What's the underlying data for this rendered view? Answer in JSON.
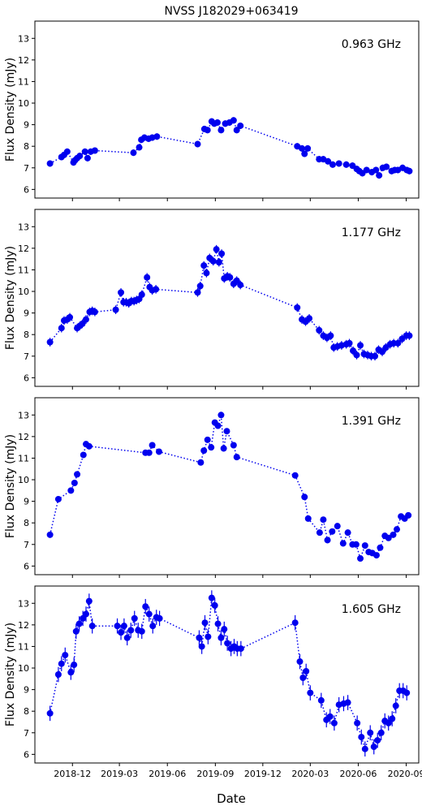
{
  "figure": {
    "title": "NVSS J182029+063419",
    "xlabel": "Date"
  },
  "chart_data": [
    {
      "type": "scatter",
      "panel_label": "0.963 GHz",
      "ylabel": "Flux Density (mJy)",
      "ylim": [
        5.6,
        13.8
      ],
      "yticks": [
        6,
        7,
        8,
        9,
        10,
        11,
        12,
        13
      ],
      "xlim": [
        "2018-09-20",
        "2020-09-25"
      ],
      "xticks": [
        "2018-12",
        "2019-03",
        "2019-06",
        "2019-09",
        "2019-12",
        "2020-03",
        "2020-06",
        "2020-09"
      ],
      "grid": false,
      "marker_style": "circles joined by dotted line, with error bars",
      "x": [
        "2018-10-19",
        "2018-11-10",
        "2018-11-15",
        "2018-11-21",
        "2018-12-03",
        "2018-12-06",
        "2018-12-10",
        "2018-12-15",
        "2018-12-25",
        "2018-12-30",
        "2019-01-05",
        "2019-01-13",
        "2019-03-28",
        "2019-04-08",
        "2019-04-12",
        "2019-04-18",
        "2019-04-26",
        "2019-05-03",
        "2019-05-12",
        "2019-07-29",
        "2019-08-11",
        "2019-08-17",
        "2019-08-25",
        "2019-08-30",
        "2019-09-05",
        "2019-09-12",
        "2019-09-20",
        "2019-09-28",
        "2019-10-06",
        "2019-10-12",
        "2019-10-19",
        "2020-02-05",
        "2020-02-14",
        "2020-02-19",
        "2020-02-25",
        "2020-03-18",
        "2020-03-26",
        "2020-04-04",
        "2020-04-13",
        "2020-04-25",
        "2020-05-09",
        "2020-05-21",
        "2020-05-29",
        "2020-06-03",
        "2020-06-09",
        "2020-06-17",
        "2020-06-27",
        "2020-07-05",
        "2020-07-11",
        "2020-07-18",
        "2020-07-25",
        "2020-08-04",
        "2020-08-10",
        "2020-08-16",
        "2020-08-25",
        "2020-09-02",
        "2020-09-07"
      ],
      "y": [
        7.2,
        7.5,
        7.6,
        7.75,
        7.25,
        7.35,
        7.45,
        7.55,
        7.75,
        7.45,
        7.75,
        7.8,
        7.7,
        7.95,
        8.3,
        8.4,
        8.35,
        8.4,
        8.45,
        8.1,
        8.8,
        8.75,
        9.15,
        9.05,
        9.1,
        8.75,
        9.05,
        9.1,
        9.2,
        8.75,
        8.95,
        8.0,
        7.9,
        7.65,
        7.9,
        7.4,
        7.4,
        7.3,
        7.15,
        7.2,
        7.15,
        7.1,
        6.95,
        6.85,
        6.75,
        6.9,
        6.8,
        6.9,
        6.65,
        7.0,
        7.05,
        6.85,
        6.9,
        6.9,
        7.0,
        6.9,
        6.85
      ],
      "yerr": 0.15
    },
    {
      "type": "scatter",
      "panel_label": "1.177 GHz",
      "ylabel": "Flux Density (mJy)",
      "ylim": [
        5.6,
        13.8
      ],
      "yticks": [
        6,
        7,
        8,
        9,
        10,
        11,
        12,
        13
      ],
      "xlim": [
        "2018-09-20",
        "2020-09-25"
      ],
      "xticks": [
        "2018-12",
        "2019-03",
        "2019-06",
        "2019-09",
        "2019-12",
        "2020-03",
        "2020-06",
        "2020-09"
      ],
      "grid": false,
      "x": [
        "2018-10-19",
        "2018-11-10",
        "2018-11-15",
        "2018-11-21",
        "2018-11-26",
        "2018-12-10",
        "2018-12-15",
        "2018-12-20",
        "2018-12-27",
        "2019-01-03",
        "2019-01-08",
        "2019-01-13",
        "2019-02-22",
        "2019-03-04",
        "2019-03-09",
        "2019-03-14",
        "2019-03-19",
        "2019-03-24",
        "2019-03-29",
        "2019-04-03",
        "2019-04-08",
        "2019-04-13",
        "2019-04-23",
        "2019-04-28",
        "2019-05-03",
        "2019-05-10",
        "2019-07-29",
        "2019-08-03",
        "2019-08-10",
        "2019-08-15",
        "2019-08-21",
        "2019-08-28",
        "2019-09-03",
        "2019-09-08",
        "2019-09-13",
        "2019-09-18",
        "2019-09-24",
        "2019-09-29",
        "2019-10-06",
        "2019-10-12",
        "2019-10-19",
        "2020-02-05",
        "2020-02-14",
        "2020-02-21",
        "2020-02-28",
        "2020-03-18",
        "2020-03-26",
        "2020-04-02",
        "2020-04-09",
        "2020-04-15",
        "2020-04-22",
        "2020-04-30",
        "2020-05-09",
        "2020-05-15",
        "2020-05-22",
        "2020-05-29",
        "2020-06-05",
        "2020-06-12",
        "2020-06-19",
        "2020-06-26",
        "2020-07-03",
        "2020-07-10",
        "2020-07-17",
        "2020-07-24",
        "2020-08-01",
        "2020-08-08",
        "2020-08-16",
        "2020-08-24",
        "2020-09-01",
        "2020-09-07"
      ],
      "y": [
        7.65,
        8.3,
        8.65,
        8.7,
        8.8,
        8.3,
        8.4,
        8.5,
        8.7,
        9.05,
        9.1,
        9.05,
        9.15,
        9.95,
        9.5,
        9.5,
        9.45,
        9.55,
        9.55,
        9.6,
        9.65,
        9.85,
        10.65,
        10.2,
        10.05,
        10.1,
        9.95,
        10.25,
        11.2,
        10.85,
        11.55,
        11.4,
        11.95,
        11.35,
        11.75,
        10.6,
        10.7,
        10.65,
        10.35,
        10.5,
        10.3,
        9.25,
        8.7,
        8.6,
        8.75,
        8.2,
        7.95,
        7.85,
        7.95,
        7.4,
        7.45,
        7.5,
        7.55,
        7.6,
        7.25,
        7.05,
        7.5,
        7.1,
        7.05,
        7.0,
        7.0,
        7.3,
        7.2,
        7.4,
        7.55,
        7.6,
        7.6,
        7.8,
        7.95,
        7.95
      ],
      "yerr": 0.2
    },
    {
      "type": "scatter",
      "panel_label": "1.391 GHz",
      "ylabel": "Flux Density (mJy)",
      "ylim": [
        5.6,
        13.8
      ],
      "yticks": [
        6,
        7,
        8,
        9,
        10,
        11,
        12,
        13
      ],
      "xlim": [
        "2018-09-20",
        "2020-09-25"
      ],
      "xticks": [
        "2018-12",
        "2019-03",
        "2019-06",
        "2019-09",
        "2019-12",
        "2020-03",
        "2020-06",
        "2020-09"
      ],
      "grid": false,
      "x": [
        "2018-10-19",
        "2018-11-04",
        "2018-11-28",
        "2018-12-05",
        "2018-12-10",
        "2018-12-22",
        "2018-12-27",
        "2019-01-02",
        "2019-04-20",
        "2019-04-27",
        "2019-05-03",
        "2019-05-16",
        "2019-08-04",
        "2019-08-10",
        "2019-08-17",
        "2019-08-24",
        "2019-08-31",
        "2019-09-06",
        "2019-09-12",
        "2019-09-17",
        "2019-09-23",
        "2019-10-06",
        "2019-10-12",
        "2020-02-01",
        "2020-02-19",
        "2020-02-26",
        "2020-03-19",
        "2020-03-26",
        "2020-04-03",
        "2020-04-12",
        "2020-04-22",
        "2020-05-03",
        "2020-05-12",
        "2020-05-21",
        "2020-05-28",
        "2020-06-05",
        "2020-06-14",
        "2020-06-21",
        "2020-06-28",
        "2020-07-06",
        "2020-07-13",
        "2020-07-22",
        "2020-07-29",
        "2020-08-07",
        "2020-08-14",
        "2020-08-22",
        "2020-08-29",
        "2020-09-05"
      ],
      "y": [
        7.45,
        9.1,
        9.5,
        9.85,
        10.25,
        11.15,
        11.65,
        11.55,
        11.25,
        11.25,
        11.6,
        11.3,
        10.8,
        11.35,
        11.85,
        11.5,
        12.65,
        12.5,
        13.0,
        11.45,
        12.25,
        11.6,
        11.05,
        10.2,
        9.2,
        8.2,
        7.55,
        8.15,
        7.2,
        7.6,
        7.85,
        7.05,
        7.55,
        7.0,
        7.0,
        6.35,
        6.95,
        6.65,
        6.6,
        6.5,
        6.85,
        7.4,
        7.3,
        7.45,
        7.7,
        8.3,
        8.2,
        8.35
      ],
      "yerr": 0.12
    },
    {
      "type": "scatter",
      "panel_label": "1.605 GHz",
      "ylabel": "Flux Density (mJy)",
      "ylim": [
        5.6,
        13.8
      ],
      "yticks": [
        6,
        7,
        8,
        9,
        10,
        11,
        12,
        13
      ],
      "xlim": [
        "2018-09-20",
        "2020-09-25"
      ],
      "xticks": [
        "2018-12",
        "2019-03",
        "2019-06",
        "2019-09",
        "2019-12",
        "2020-03",
        "2020-06",
        "2020-09"
      ],
      "grid": false,
      "x": [
        "2018-10-19",
        "2018-11-04",
        "2018-11-10",
        "2018-11-17",
        "2018-11-28",
        "2018-12-04",
        "2018-12-08",
        "2018-12-14",
        "2018-12-21",
        "2018-12-27",
        "2019-01-02",
        "2019-01-08",
        "2019-02-25",
        "2019-03-04",
        "2019-03-10",
        "2019-03-16",
        "2019-03-23",
        "2019-03-30",
        "2019-04-06",
        "2019-04-13",
        "2019-04-20",
        "2019-04-27",
        "2019-05-04",
        "2019-05-11",
        "2019-05-17",
        "2019-08-01",
        "2019-08-06",
        "2019-08-12",
        "2019-08-18",
        "2019-08-25",
        "2019-08-31",
        "2019-09-06",
        "2019-09-12",
        "2019-09-18",
        "2019-09-24",
        "2019-10-01",
        "2019-10-07",
        "2019-10-13",
        "2019-10-20",
        "2020-02-01",
        "2020-02-10",
        "2020-02-16",
        "2020-02-22",
        "2020-03-01",
        "2020-03-22",
        "2020-04-01",
        "2020-04-08",
        "2020-04-16",
        "2020-04-25",
        "2020-05-04",
        "2020-05-12",
        "2020-05-30",
        "2020-06-07",
        "2020-06-14",
        "2020-06-24",
        "2020-07-01",
        "2020-07-08",
        "2020-07-15",
        "2020-07-22",
        "2020-07-29",
        "2020-08-05",
        "2020-08-12",
        "2020-08-19",
        "2020-08-26",
        "2020-09-02"
      ],
      "y": [
        7.9,
        9.7,
        10.2,
        10.6,
        9.8,
        10.15,
        11.7,
        12.05,
        12.3,
        12.5,
        13.1,
        11.95,
        11.95,
        11.65,
        11.95,
        11.4,
        11.75,
        12.3,
        11.75,
        11.7,
        12.85,
        12.5,
        11.95,
        12.35,
        12.3,
        11.4,
        11.0,
        12.1,
        11.45,
        13.25,
        12.9,
        12.05,
        11.4,
        11.8,
        11.15,
        10.9,
        11.0,
        10.9,
        10.9,
        12.1,
        10.3,
        9.55,
        9.85,
        8.85,
        8.5,
        7.6,
        7.75,
        7.45,
        8.3,
        8.35,
        8.4,
        7.45,
        6.8,
        6.25,
        7.0,
        6.35,
        6.65,
        7.0,
        7.55,
        7.45,
        7.65,
        8.25,
        8.95,
        8.95,
        8.85
      ],
      "yerr": 0.35
    }
  ]
}
